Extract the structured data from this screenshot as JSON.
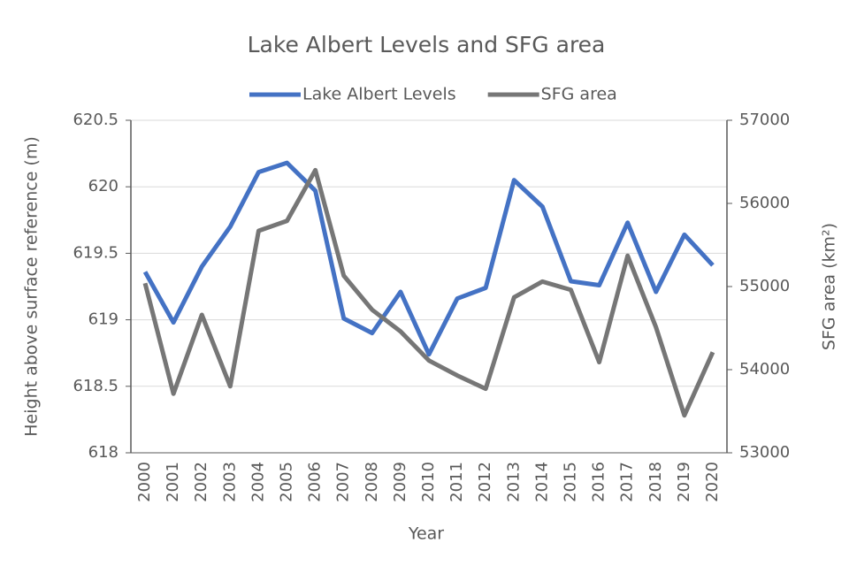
{
  "chart_data": {
    "type": "line",
    "title": "Lake Albert Levels and SFG area",
    "x_label": "Year",
    "y_label": "Height above surface reference (m)",
    "y2_label": "SFG area (km²)",
    "categories": [
      "2000",
      "2001",
      "2002",
      "2003",
      "2004",
      "2005",
      "2006",
      "2007",
      "2008",
      "2009",
      "2010",
      "2011",
      "2012",
      "2013",
      "2014",
      "2015",
      "2016",
      "2017",
      "2018",
      "2019",
      "2020"
    ],
    "series": [
      {
        "name": "Lake Albert Levels",
        "color": "#4472c4",
        "axis": "y",
        "values": [
          619.36,
          618.98,
          619.4,
          619.7,
          620.11,
          620.18,
          619.97,
          619.01,
          618.9,
          619.21,
          618.74,
          619.16,
          619.24,
          620.05,
          619.85,
          619.29,
          619.26,
          619.73,
          619.21,
          619.64,
          619.41
        ]
      },
      {
        "name": "SFG area",
        "color": "#767676",
        "axis": "y2",
        "values": [
          55040,
          53710,
          54660,
          53800,
          55670,
          55790,
          56400,
          55130,
          54720,
          54460,
          54110,
          53930,
          53770,
          54870,
          55060,
          54960,
          54090,
          55370,
          54510,
          53450,
          54210
        ]
      }
    ],
    "ylim": [
      618,
      620.5
    ],
    "yticks": [
      618,
      618.5,
      619,
      619.5,
      620,
      620.5
    ],
    "y2lim": [
      53000,
      57000
    ],
    "y2ticks": [
      53000,
      54000,
      55000,
      56000,
      57000
    ],
    "grid": true,
    "legend": "top"
  }
}
